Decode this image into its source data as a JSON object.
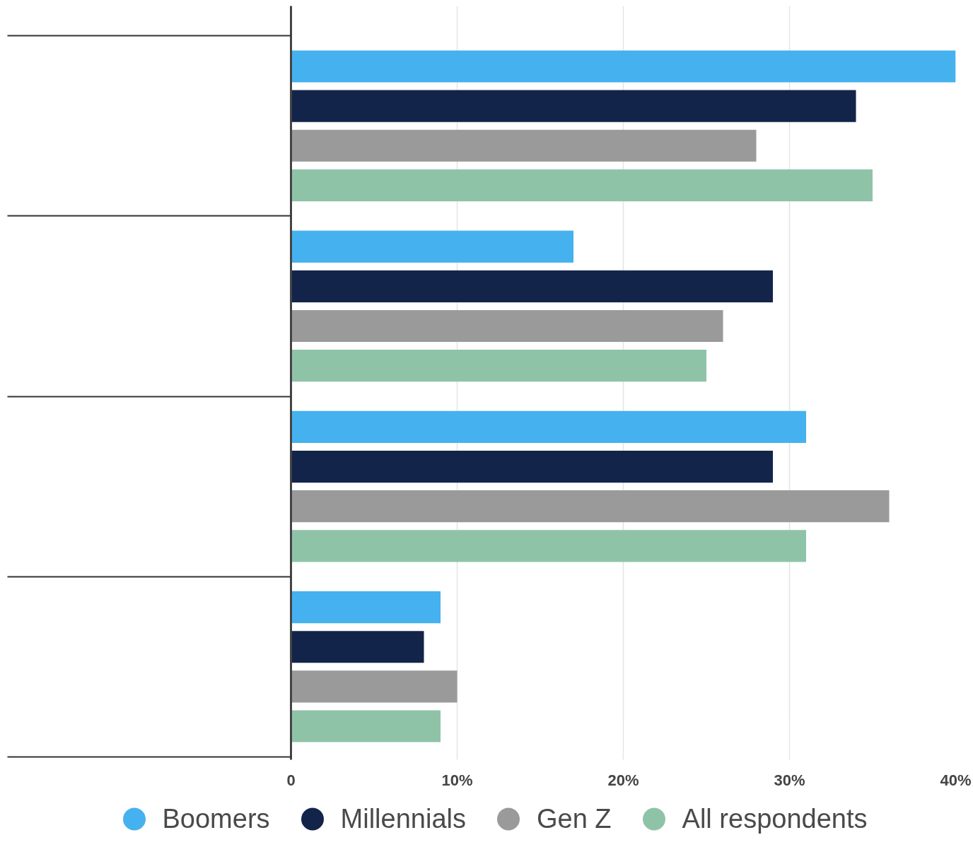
{
  "chart_data": {
    "type": "bar",
    "orientation": "horizontal",
    "categories": [
      null,
      null,
      null,
      null
    ],
    "series": [
      {
        "name": "Boomers",
        "color": "#45b1ef",
        "values": [
          40,
          17,
          31,
          9
        ]
      },
      {
        "name": "Millennials",
        "color": "#13244a",
        "values": [
          34,
          29,
          29,
          8
        ]
      },
      {
        "name": "Gen Z",
        "color": "#9a9a9a",
        "values": [
          28,
          26,
          36,
          10
        ]
      },
      {
        "name": "All respondents",
        "color": "#8fc3a7",
        "values": [
          35,
          25,
          31,
          9
        ]
      }
    ],
    "xlim": [
      0,
      40
    ],
    "xticks": [
      0,
      {
        "value": 10,
        "label": "10%"
      },
      {
        "value": 20,
        "label": "20%"
      },
      {
        "value": 30,
        "label": "30%"
      },
      {
        "value": 40,
        "label": "40%"
      }
    ],
    "grid": "x",
    "legend": "bottom"
  }
}
